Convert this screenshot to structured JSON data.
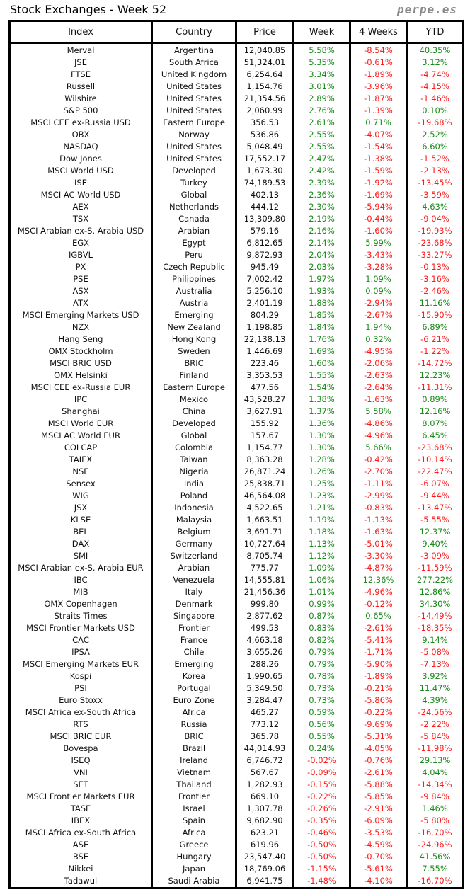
{
  "title": "Stock Exchanges - Week 52",
  "brand": "perpe.es",
  "colors": {
    "positive": "#1a8a1a",
    "negative": "#ff1a1a"
  },
  "columns": [
    "Index",
    "Country",
    "Price",
    "Week",
    "4 Weeks",
    "YTD"
  ],
  "rows": [
    [
      "Merval",
      "Argentina",
      "12,040.85",
      "5.58%",
      "-8.54%",
      "40.35%"
    ],
    [
      "JSE",
      "South Africa",
      "51,324.01",
      "5.35%",
      "-0.61%",
      "3.12%"
    ],
    [
      "FTSE",
      "United Kingdom",
      "6,254.64",
      "3.34%",
      "-1.89%",
      "-4.74%"
    ],
    [
      "Russell",
      "United States",
      "1,154.76",
      "3.01%",
      "-3.96%",
      "-4.15%"
    ],
    [
      "Wilshire",
      "United States",
      "21,354.56",
      "2.89%",
      "-1.87%",
      "-1.46%"
    ],
    [
      "S&P 500",
      "United States",
      "2,060.99",
      "2.76%",
      "-1.39%",
      "0.10%"
    ],
    [
      "MSCI CEE ex-Russia USD",
      "Eastern Europe",
      "356.53",
      "2.61%",
      "0.71%",
      "-19.68%"
    ],
    [
      "OBX",
      "Norway",
      "536.86",
      "2.55%",
      "-4.07%",
      "2.52%"
    ],
    [
      "NASDAQ",
      "United States",
      "5,048.49",
      "2.55%",
      "-1.54%",
      "6.60%"
    ],
    [
      "Dow Jones",
      "United States",
      "17,552.17",
      "2.47%",
      "-1.38%",
      "-1.52%"
    ],
    [
      "MSCI World USD",
      "Developed",
      "1,673.30",
      "2.42%",
      "-1.59%",
      "-2.13%"
    ],
    [
      "ISE",
      "Turkey",
      "74,189.53",
      "2.39%",
      "-1.92%",
      "-13.45%"
    ],
    [
      "MSCI AC World USD",
      "Global",
      "402.13",
      "2.36%",
      "-1.69%",
      "-3.59%"
    ],
    [
      "AEX",
      "Netherlands",
      "444.12",
      "2.30%",
      "-5.94%",
      "4.63%"
    ],
    [
      "TSX",
      "Canada",
      "13,309.80",
      "2.19%",
      "-0.44%",
      "-9.04%"
    ],
    [
      "MSCI Arabian ex-S. Arabia USD",
      "Arabian",
      "579.16",
      "2.16%",
      "-1.60%",
      "-19.93%"
    ],
    [
      "EGX",
      "Egypt",
      "6,812.65",
      "2.14%",
      "5.99%",
      "-23.68%"
    ],
    [
      "IGBVL",
      "Peru",
      "9,872.93",
      "2.04%",
      "-3.43%",
      "-33.27%"
    ],
    [
      "PX",
      "Czech Republic",
      "945.49",
      "2.03%",
      "-3.28%",
      "-0.13%"
    ],
    [
      "PSE",
      "Philippines",
      "7,002.42",
      "1.97%",
      "1.09%",
      "-3.16%"
    ],
    [
      "ASX",
      "Australia",
      "5,256.10",
      "1.93%",
      "0.09%",
      "-2.46%"
    ],
    [
      "ATX",
      "Austria",
      "2,401.19",
      "1.88%",
      "-2.94%",
      "11.16%"
    ],
    [
      "MSCI Emerging Markets USD",
      "Emerging",
      "804.29",
      "1.85%",
      "-2.67%",
      "-15.90%"
    ],
    [
      "NZX",
      "New Zealand",
      "1,198.85",
      "1.84%",
      "1.94%",
      "6.89%"
    ],
    [
      "Hang Seng",
      "Hong Kong",
      "22,138.13",
      "1.76%",
      "0.32%",
      "-6.21%"
    ],
    [
      "OMX Stockholm",
      "Sweden",
      "1,446.69",
      "1.69%",
      "-4.95%",
      "-1.22%"
    ],
    [
      "MSCI BRIC USD",
      "BRIC",
      "223.46",
      "1.60%",
      "-2.06%",
      "-14.72%"
    ],
    [
      "OMX Helsinki",
      "Finland",
      "3,353.53",
      "1.55%",
      "-2.63%",
      "12.23%"
    ],
    [
      "MSCI CEE ex-Russia EUR",
      "Eastern Europe",
      "477.56",
      "1.54%",
      "-2.64%",
      "-11.31%"
    ],
    [
      "IPC",
      "Mexico",
      "43,528.27",
      "1.38%",
      "-1.63%",
      "0.89%"
    ],
    [
      "Shanghai",
      "China",
      "3,627.91",
      "1.37%",
      "5.58%",
      "12.16%"
    ],
    [
      "MSCI World EUR",
      "Developed",
      "155.92",
      "1.36%",
      "-4.86%",
      "8.07%"
    ],
    [
      "MSCI AC World EUR",
      "Global",
      "157.67",
      "1.30%",
      "-4.96%",
      "6.45%"
    ],
    [
      "COLCAP",
      "Colombia",
      "1,154.77",
      "1.30%",
      "5.66%",
      "-23.68%"
    ],
    [
      "TAIEX",
      "Taiwan",
      "8,363.28",
      "1.28%",
      "-0.42%",
      "-10.14%"
    ],
    [
      "NSE",
      "Nigeria",
      "26,871.24",
      "1.26%",
      "-2.70%",
      "-22.47%"
    ],
    [
      "Sensex",
      "India",
      "25,838.71",
      "1.25%",
      "-1.11%",
      "-6.07%"
    ],
    [
      "WIG",
      "Poland",
      "46,564.08",
      "1.23%",
      "-2.99%",
      "-9.44%"
    ],
    [
      "JSX",
      "Indonesia",
      "4,522.65",
      "1.21%",
      "-0.83%",
      "-13.47%"
    ],
    [
      "KLSE",
      "Malaysia",
      "1,663.51",
      "1.19%",
      "-1.13%",
      "-5.55%"
    ],
    [
      "BEL",
      "Belgium",
      "3,691.71",
      "1.18%",
      "-1.63%",
      "12.37%"
    ],
    [
      "DAX",
      "Germany",
      "10,727.64",
      "1.13%",
      "-5.01%",
      "9.40%"
    ],
    [
      "SMI",
      "Switzerland",
      "8,705.74",
      "1.12%",
      "-3.30%",
      "-3.09%"
    ],
    [
      "MSCI Arabian ex-S. Arabia EUR",
      "Arabian",
      "775.77",
      "1.09%",
      "-4.87%",
      "-11.59%"
    ],
    [
      "IBC",
      "Venezuela",
      "14,555.81",
      "1.06%",
      "12.36%",
      "277.22%"
    ],
    [
      "MIB",
      "Italy",
      "21,456.36",
      "1.01%",
      "-4.96%",
      "12.86%"
    ],
    [
      "OMX Copenhagen",
      "Denmark",
      "999.80",
      "0.99%",
      "-0.12%",
      "34.30%"
    ],
    [
      "Straits Times",
      "Singapore",
      "2,877.62",
      "0.87%",
      "0.65%",
      "-14.49%"
    ],
    [
      "MSCI Frontier Markets USD",
      "Frontier",
      "499.53",
      "0.83%",
      "-2.61%",
      "-18.35%"
    ],
    [
      "CAC",
      "France",
      "4,663.18",
      "0.82%",
      "-5.41%",
      "9.14%"
    ],
    [
      "IPSA",
      "Chile",
      "3,655.26",
      "0.79%",
      "-1.71%",
      "-5.08%"
    ],
    [
      "MSCI Emerging Markets EUR",
      "Emerging",
      "288.26",
      "0.79%",
      "-5.90%",
      "-7.13%"
    ],
    [
      "Kospi",
      "Korea",
      "1,990.65",
      "0.78%",
      "-1.89%",
      "3.92%"
    ],
    [
      "PSI",
      "Portugal",
      "5,349.50",
      "0.73%",
      "-0.21%",
      "11.47%"
    ],
    [
      "Euro Stoxx",
      "Euro Zone",
      "3,284.47",
      "0.73%",
      "-5.86%",
      "4.39%"
    ],
    [
      "MSCI Africa ex-South Africa",
      "Africa",
      "465.27",
      "0.59%",
      "-0.22%",
      "-24.56%"
    ],
    [
      "RTS",
      "Russia",
      "773.12",
      "0.56%",
      "-9.69%",
      "-2.22%"
    ],
    [
      "MSCI BRIC EUR",
      "BRIC",
      "365.78",
      "0.55%",
      "-5.31%",
      "-5.84%"
    ],
    [
      "Bovespa",
      "Brazil",
      "44,014.93",
      "0.24%",
      "-4.05%",
      "-11.98%"
    ],
    [
      "ISEQ",
      "Ireland",
      "6,746.72",
      "-0.02%",
      "-0.76%",
      "29.13%"
    ],
    [
      "VNI",
      "Vietnam",
      "567.67",
      "-0.09%",
      "-2.61%",
      "4.04%"
    ],
    [
      "SET",
      "Thailand",
      "1,282.93",
      "-0.15%",
      "-5.88%",
      "-14.34%"
    ],
    [
      "MSCI Frontier Markets EUR",
      "Frontier",
      "669.10",
      "-0.22%",
      "-5.85%",
      "-9.84%"
    ],
    [
      "TASE",
      "Israel",
      "1,307.78",
      "-0.26%",
      "-2.91%",
      "1.46%"
    ],
    [
      "IBEX",
      "Spain",
      "9,682.90",
      "-0.35%",
      "-6.09%",
      "-5.80%"
    ],
    [
      "MSCI Africa ex-South Africa",
      "Africa",
      "623.21",
      "-0.46%",
      "-3.53%",
      "-16.70%"
    ],
    [
      "ASE",
      "Greece",
      "619.96",
      "-0.50%",
      "-4.59%",
      "-24.96%"
    ],
    [
      "BSE",
      "Hungary",
      "23,547.40",
      "-0.50%",
      "-0.70%",
      "41.56%"
    ],
    [
      "Nikkei",
      "Japan",
      "18,769.06",
      "-1.15%",
      "-5.61%",
      "7.55%"
    ],
    [
      "Tadawul",
      "Saudi Arabia",
      "6,941.75",
      "-1.48%",
      "-4.10%",
      "-16.70%"
    ]
  ]
}
